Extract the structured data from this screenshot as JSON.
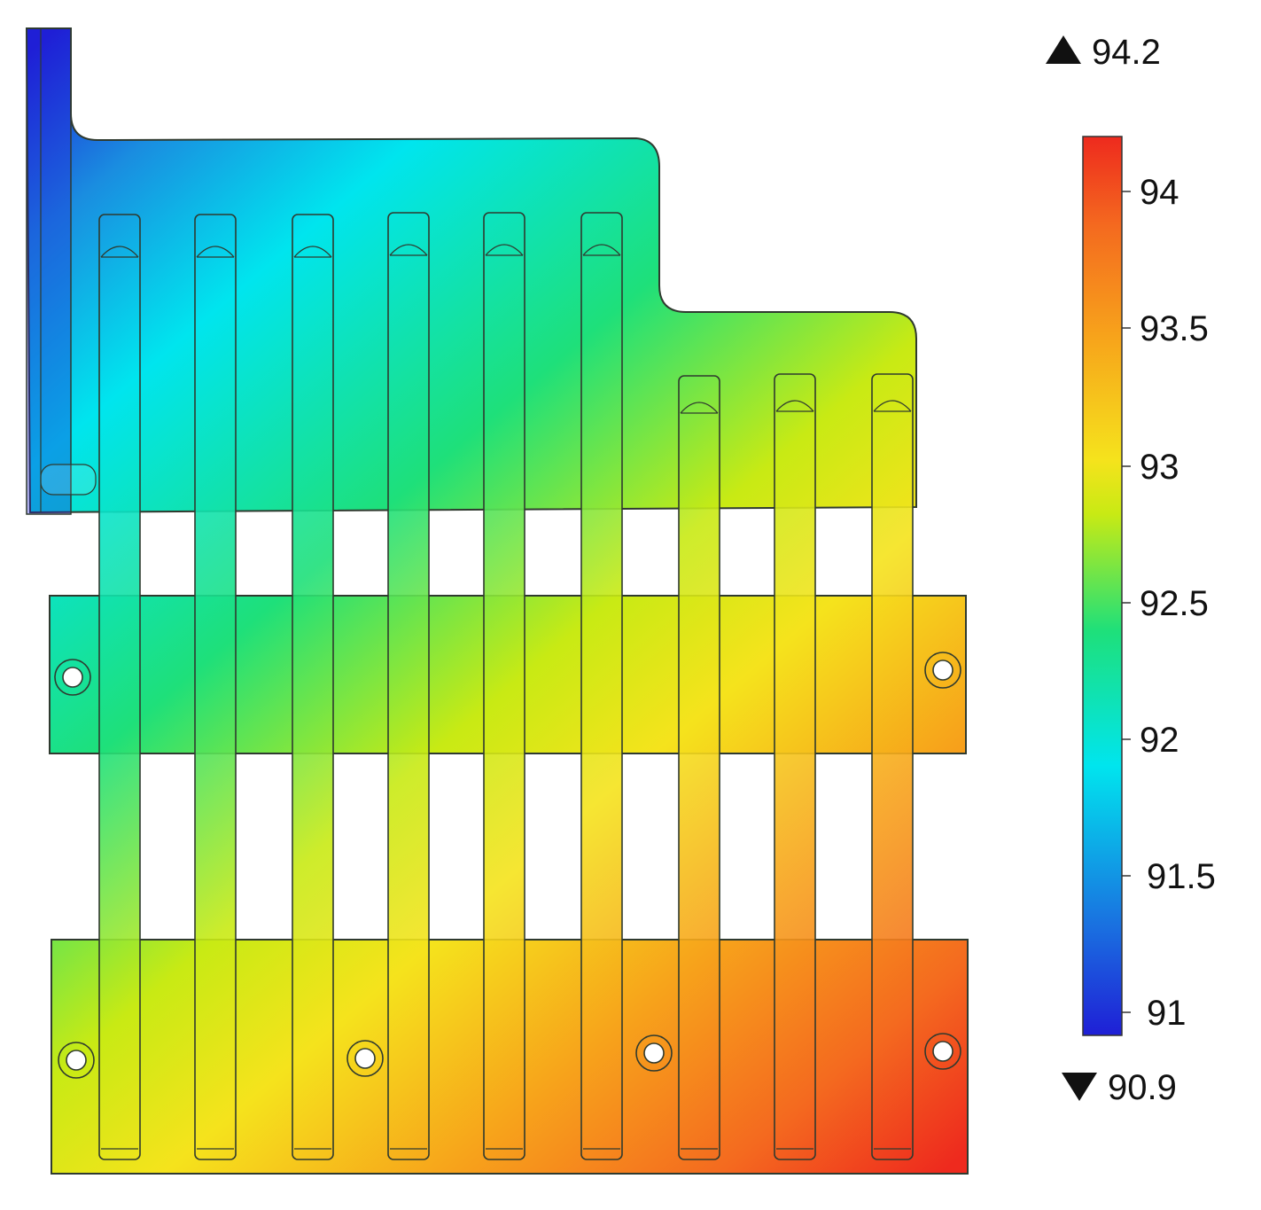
{
  "colorbar": {
    "max_indicator": "94.2",
    "min_indicator": "90.9",
    "ticks": [
      "94",
      "93.5",
      "93",
      "92.5",
      "92",
      "91.5",
      "91"
    ],
    "range": [
      90.9,
      94.2
    ],
    "colormap": [
      "#1f1fd6",
      "#1a8de0",
      "#00e5ee",
      "#1ee07a",
      "#c8ea14",
      "#f5e31c",
      "#f7a21b",
      "#f46a1f",
      "#ee2a1e"
    ]
  },
  "colors": {
    "outline": "#2f3a2f",
    "hole": "#ffffff"
  }
}
